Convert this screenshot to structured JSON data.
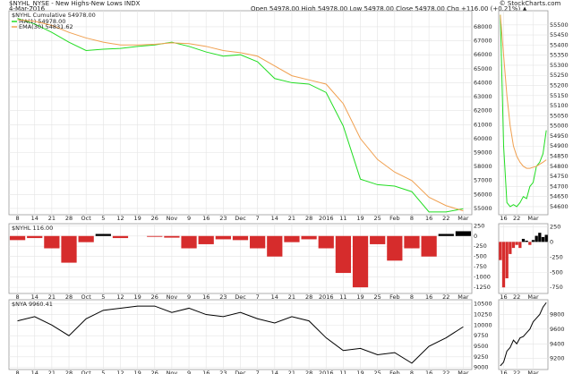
{
  "header": {
    "symbol": "$NYHL_NYSE - New Highs-New Lows INDX",
    "date": "4-Mar-2016",
    "quote": "Open 54978.00 High 54978.00 Low 54978.00 Close 54978.00 Chg +116.00 (+0.21%) ▲",
    "credit": "© StockCharts.com"
  },
  "chart_data": [
    {
      "type": "line",
      "title": "$NYHL Cumulative 54978.00",
      "categories": [
        "8",
        "14",
        "21",
        "28",
        "Oct",
        "5",
        "12",
        "19",
        "26",
        "Nov",
        "9",
        "16",
        "23",
        "Dec",
        "7",
        "14",
        "21",
        "28",
        "2016",
        "11",
        "19",
        "25",
        "Feb",
        "8",
        "16",
        "22",
        "Mar"
      ],
      "series": [
        {
          "name": "MA(1) 54978.00",
          "color": "#22dd22",
          "values": [
            68600,
            68200,
            67600,
            66900,
            66300,
            66400,
            66450,
            66600,
            66700,
            66900,
            66600,
            66200,
            65900,
            66000,
            65500,
            64300,
            64000,
            63900,
            63300,
            60900,
            57100,
            56700,
            56600,
            56200,
            54750,
            54750,
            54978
          ]
        },
        {
          "name": "EMA(30) 54831.62",
          "color": "#f0a050",
          "values": [
            68500,
            68400,
            68100,
            67600,
            67200,
            66900,
            66700,
            66700,
            66750,
            66850,
            66800,
            66600,
            66300,
            66150,
            65900,
            65200,
            64500,
            64200,
            63900,
            62500,
            60000,
            58500,
            57600,
            57000,
            55800,
            55200,
            54831.62
          ]
        }
      ],
      "ylim": [
        54550,
        69150
      ],
      "yticks": [
        55000,
        56000,
        57000,
        58000,
        59000,
        60000,
        61000,
        62000,
        63000,
        64000,
        65000,
        66000,
        67000,
        68000
      ],
      "grid": true
    },
    {
      "type": "line",
      "categories": [
        null,
        "16",
        null,
        null,
        null,
        "22",
        null,
        null,
        null,
        null,
        "Mar",
        null,
        null,
        null,
        null
      ],
      "series": [
        {
          "color": "#22dd22",
          "values": [
            55550,
            54900,
            54620,
            54600,
            54610,
            54600,
            54620,
            54650,
            54640,
            54700,
            54720,
            54800,
            54820,
            54862,
            54978
          ]
        },
        {
          "color": "#f0a050",
          "values": [
            55550,
            55350,
            55150,
            55000,
            54900,
            54850,
            54820,
            54800,
            54790,
            54790,
            54795,
            54800,
            54810,
            54820,
            54832
          ]
        }
      ],
      "ylim": [
        54560,
        55570
      ],
      "yticks": [
        54600,
        54650,
        54700,
        54750,
        54800,
        54850,
        54900,
        54950,
        55000,
        55050,
        55100,
        55150,
        55200,
        55250,
        55300,
        55350,
        55400,
        55450,
        55500
      ],
      "grid": true
    },
    {
      "type": "bar",
      "title": "$NYHL 116.00",
      "categories": [
        "8",
        "14",
        "21",
        "28",
        "Oct",
        "5",
        "12",
        "19",
        "26",
        "Nov",
        "9",
        "16",
        "23",
        "Dec",
        "7",
        "14",
        "21",
        "28",
        "2016",
        "11",
        "19",
        "25",
        "Feb",
        "8",
        "16",
        "22",
        "Mar"
      ],
      "values": [
        -100,
        -50,
        -300,
        -650,
        -150,
        50,
        -50,
        0,
        -20,
        -40,
        -300,
        -200,
        -80,
        -100,
        -300,
        -500,
        -150,
        -80,
        -300,
        -900,
        -1250,
        -200,
        -600,
        -300,
        -500,
        50,
        116
      ],
      "color": "#d62c2c",
      "positive_color": "#000000",
      "ylim": [
        -1400,
        300
      ],
      "yticks": [
        250,
        0,
        -250,
        -500,
        -750,
        -1000,
        -1250
      ],
      "grid": true
    },
    {
      "type": "bar",
      "categories": [
        null,
        "16",
        null,
        null,
        null,
        "22",
        null,
        null,
        null,
        null,
        "Mar",
        null,
        null,
        null,
        null
      ],
      "values": [
        -300,
        -750,
        -600,
        -200,
        -100,
        -50,
        -100,
        50,
        20,
        -50,
        30,
        100,
        150,
        80,
        116
      ],
      "color": "#d62c2c",
      "positive_color": "#000000",
      "ylim": [
        -850,
        300
      ],
      "yticks": [
        250,
        0,
        -250,
        -500,
        -750
      ],
      "grid": true
    },
    {
      "type": "line",
      "title": "$NYA 9960.41",
      "categories": [
        "8",
        "14",
        "21",
        "28",
        "Oct",
        "5",
        "12",
        "19",
        "26",
        "Nov",
        "9",
        "16",
        "23",
        "Dec",
        "7",
        "14",
        "21",
        "28",
        "2016",
        "11",
        "19",
        "25",
        "Feb",
        "8",
        "16",
        "22",
        "Mar"
      ],
      "series": [
        {
          "color": "#000000",
          "values": [
            10100,
            10200,
            10000,
            9750,
            10150,
            10350,
            10400,
            10450,
            10450,
            10300,
            10400,
            10250,
            10200,
            10300,
            10150,
            10050,
            10200,
            10100,
            9700,
            9400,
            9450,
            9300,
            9350,
            9100,
            9500,
            9700,
            9960.41
          ]
        }
      ],
      "ylim": [
        8950,
        10600
      ],
      "yticks": [
        9000,
        9250,
        9500,
        9750,
        10000,
        10250,
        10500
      ],
      "grid": true
    },
    {
      "type": "line",
      "categories": [
        null,
        "16",
        null,
        null,
        null,
        "22",
        null,
        null,
        null,
        null,
        "Mar",
        null,
        null,
        null,
        null
      ],
      "series": [
        {
          "color": "#000000",
          "values": [
            9100,
            9150,
            9300,
            9350,
            9450,
            9400,
            9480,
            9500,
            9550,
            9600,
            9700,
            9750,
            9800,
            9900,
            9960.41
          ]
        }
      ],
      "ylim": [
        9050,
        10000
      ],
      "yticks": [
        9200,
        9400,
        9600,
        9800
      ],
      "grid": true
    }
  ]
}
